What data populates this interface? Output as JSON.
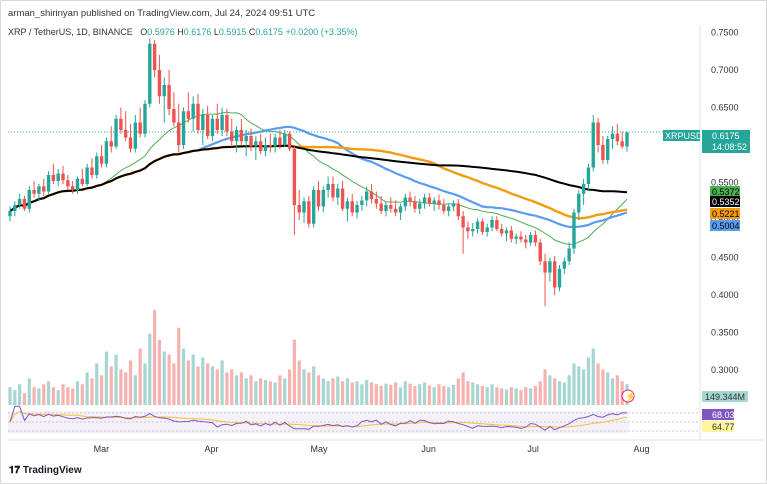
{
  "header": {
    "publisher_line": "arman_shirinyan published on TradingView.com, Jul 24, 2024 09:51 UTC"
  },
  "symbol_bar": {
    "title": "XRP / TetherUS, 1D, BINANCE",
    "o_label": "O",
    "o_value": "0.5976",
    "h_label": "H",
    "h_value": "0.6176",
    "l_label": "L",
    "l_value": "0.5915",
    "c_label": "C",
    "c_value": "0.6175",
    "change": "+0.0200 (+3.35%)"
  },
  "footer": {
    "brand": "TradingView"
  },
  "colors": {
    "up": "#26a69a",
    "down": "#ef5350",
    "ma_short": "#4caf50",
    "ma_mid": "#5b9cf2",
    "ma_long": "#000000",
    "ma_orange": "#f39c12",
    "rsi": "#7e57c2",
    "rsi_ma": "#fbc02d"
  },
  "chart_data": {
    "type": "candlestick",
    "symbol": "XRPUSDT",
    "interval": "1D",
    "exchange": "BINANCE",
    "y_axis": {
      "ticks": [
        "0.7500",
        "0.7000",
        "0.6500",
        "0.6000",
        "0.5500",
        "0.5000",
        "0.4500",
        "0.4000",
        "0.3500",
        "0.3000"
      ],
      "range": [
        0.28,
        0.76
      ]
    },
    "x_axis": {
      "ticks": [
        "Mar",
        "Apr",
        "May",
        "Jun",
        "Jul",
        "Aug"
      ]
    },
    "last_price_label": {
      "symbol": "XRPUSDT",
      "price": "0.6175",
      "countdown": "14:08:52"
    },
    "ma_labels": [
      "0.5372",
      "0.5352",
      "0.5221",
      "0.5004"
    ],
    "volume_label": "149.344M",
    "rsi_labels": [
      "68.03",
      "64.77"
    ],
    "candles": [
      [
        0.505,
        0.518,
        0.498,
        0.512
      ],
      [
        0.512,
        0.525,
        0.505,
        0.52
      ],
      [
        0.52,
        0.535,
        0.515,
        0.528
      ],
      [
        0.528,
        0.532,
        0.512,
        0.515
      ],
      [
        0.515,
        0.545,
        0.51,
        0.54
      ],
      [
        0.54,
        0.552,
        0.53,
        0.535
      ],
      [
        0.535,
        0.548,
        0.525,
        0.545
      ],
      [
        0.545,
        0.555,
        0.532,
        0.538
      ],
      [
        0.538,
        0.565,
        0.535,
        0.56
      ],
      [
        0.56,
        0.575,
        0.548,
        0.552
      ],
      [
        0.552,
        0.568,
        0.545,
        0.562
      ],
      [
        0.562,
        0.572,
        0.548,
        0.553
      ],
      [
        0.553,
        0.56,
        0.54,
        0.545
      ],
      [
        0.545,
        0.552,
        0.535,
        0.54
      ],
      [
        0.54,
        0.558,
        0.535,
        0.555
      ],
      [
        0.555,
        0.568,
        0.545,
        0.548
      ],
      [
        0.548,
        0.575,
        0.545,
        0.57
      ],
      [
        0.57,
        0.582,
        0.555,
        0.56
      ],
      [
        0.56,
        0.59,
        0.555,
        0.585
      ],
      [
        0.585,
        0.6,
        0.57,
        0.575
      ],
      [
        0.575,
        0.61,
        0.57,
        0.605
      ],
      [
        0.605,
        0.625,
        0.59,
        0.598
      ],
      [
        0.598,
        0.64,
        0.595,
        0.635
      ],
      [
        0.635,
        0.65,
        0.615,
        0.62
      ],
      [
        0.62,
        0.645,
        0.605,
        0.61
      ],
      [
        0.61,
        0.628,
        0.59,
        0.595
      ],
      [
        0.595,
        0.64,
        0.59,
        0.63
      ],
      [
        0.63,
        0.65,
        0.61,
        0.615
      ],
      [
        0.615,
        0.66,
        0.61,
        0.655
      ],
      [
        0.655,
        0.742,
        0.65,
        0.735
      ],
      [
        0.735,
        0.74,
        0.69,
        0.7
      ],
      [
        0.7,
        0.72,
        0.655,
        0.665
      ],
      [
        0.665,
        0.69,
        0.63,
        0.68
      ],
      [
        0.68,
        0.7,
        0.64,
        0.648
      ],
      [
        0.648,
        0.67,
        0.625,
        0.63
      ],
      [
        0.63,
        0.655,
        0.59,
        0.6
      ],
      [
        0.6,
        0.65,
        0.595,
        0.645
      ],
      [
        0.645,
        0.67,
        0.63,
        0.635
      ],
      [
        0.635,
        0.665,
        0.618,
        0.655
      ],
      [
        0.655,
        0.668,
        0.615,
        0.62
      ],
      [
        0.62,
        0.648,
        0.6,
        0.64
      ],
      [
        0.64,
        0.652,
        0.608,
        0.612
      ],
      [
        0.612,
        0.64,
        0.605,
        0.635
      ],
      [
        0.635,
        0.655,
        0.615,
        0.62
      ],
      [
        0.62,
        0.65,
        0.612,
        0.64
      ],
      [
        0.64,
        0.648,
        0.612,
        0.618
      ],
      [
        0.618,
        0.635,
        0.598,
        0.605
      ],
      [
        0.605,
        0.625,
        0.59,
        0.62
      ],
      [
        0.62,
        0.635,
        0.6,
        0.605
      ],
      [
        0.605,
        0.62,
        0.585,
        0.612
      ],
      [
        0.612,
        0.622,
        0.592,
        0.598
      ],
      [
        0.598,
        0.612,
        0.58,
        0.605
      ],
      [
        0.605,
        0.615,
        0.588,
        0.592
      ],
      [
        0.592,
        0.61,
        0.585,
        0.6
      ],
      [
        0.6,
        0.615,
        0.59,
        0.598
      ],
      [
        0.598,
        0.615,
        0.59,
        0.61
      ],
      [
        0.61,
        0.62,
        0.595,
        0.6
      ],
      [
        0.6,
        0.62,
        0.598,
        0.615
      ],
      [
        0.615,
        0.618,
        0.592,
        0.595
      ],
      [
        0.595,
        0.6,
        0.48,
        0.52
      ],
      [
        0.52,
        0.54,
        0.5,
        0.51
      ],
      [
        0.51,
        0.53,
        0.496,
        0.525
      ],
      [
        0.525,
        0.532,
        0.49,
        0.495
      ],
      [
        0.495,
        0.545,
        0.49,
        0.54
      ],
      [
        0.54,
        0.552,
        0.512,
        0.518
      ],
      [
        0.518,
        0.545,
        0.51,
        0.54
      ],
      [
        0.54,
        0.558,
        0.53,
        0.548
      ],
      [
        0.548,
        0.558,
        0.525,
        0.53
      ],
      [
        0.53,
        0.548,
        0.52,
        0.542
      ],
      [
        0.542,
        0.552,
        0.512,
        0.515
      ],
      [
        0.515,
        0.53,
        0.498,
        0.525
      ],
      [
        0.525,
        0.535,
        0.505,
        0.51
      ],
      [
        0.51,
        0.525,
        0.502,
        0.52
      ],
      [
        0.52,
        0.532,
        0.512,
        0.526
      ],
      [
        0.526,
        0.545,
        0.518,
        0.538
      ],
      [
        0.538,
        0.548,
        0.522,
        0.528
      ],
      [
        0.528,
        0.538,
        0.515,
        0.522
      ],
      [
        0.522,
        0.532,
        0.508,
        0.512
      ],
      [
        0.512,
        0.525,
        0.505,
        0.52
      ],
      [
        0.52,
        0.53,
        0.51,
        0.515
      ],
      [
        0.515,
        0.526,
        0.505,
        0.51
      ],
      [
        0.51,
        0.522,
        0.5,
        0.518
      ],
      [
        0.518,
        0.535,
        0.512,
        0.53
      ],
      [
        0.53,
        0.538,
        0.518,
        0.525
      ],
      [
        0.525,
        0.532,
        0.51,
        0.515
      ],
      [
        0.515,
        0.528,
        0.508,
        0.522
      ],
      [
        0.522,
        0.535,
        0.515,
        0.53
      ],
      [
        0.53,
        0.536,
        0.518,
        0.522
      ],
      [
        0.522,
        0.53,
        0.512,
        0.526
      ],
      [
        0.526,
        0.534,
        0.514,
        0.52
      ],
      [
        0.52,
        0.528,
        0.508,
        0.512
      ],
      [
        0.512,
        0.522,
        0.505,
        0.518
      ],
      [
        0.518,
        0.526,
        0.512,
        0.522
      ],
      [
        0.522,
        0.528,
        0.5,
        0.505
      ],
      [
        0.505,
        0.512,
        0.455,
        0.49
      ],
      [
        0.49,
        0.498,
        0.475,
        0.485
      ],
      [
        0.485,
        0.496,
        0.478,
        0.488
      ],
      [
        0.488,
        0.502,
        0.482,
        0.498
      ],
      [
        0.498,
        0.502,
        0.48,
        0.484
      ],
      [
        0.484,
        0.495,
        0.478,
        0.49
      ],
      [
        0.49,
        0.505,
        0.485,
        0.5
      ],
      [
        0.5,
        0.505,
        0.485,
        0.488
      ],
      [
        0.488,
        0.495,
        0.478,
        0.482
      ],
      [
        0.482,
        0.49,
        0.472,
        0.486
      ],
      [
        0.486,
        0.492,
        0.47,
        0.475
      ],
      [
        0.475,
        0.482,
        0.468,
        0.478
      ],
      [
        0.478,
        0.485,
        0.47,
        0.474
      ],
      [
        0.474,
        0.48,
        0.462,
        0.47
      ],
      [
        0.47,
        0.484,
        0.466,
        0.48
      ],
      [
        0.48,
        0.486,
        0.465,
        0.47
      ],
      [
        0.47,
        0.475,
        0.44,
        0.445
      ],
      [
        0.445,
        0.455,
        0.385,
        0.43
      ],
      [
        0.43,
        0.45,
        0.418,
        0.445
      ],
      [
        0.445,
        0.452,
        0.4,
        0.41
      ],
      [
        0.41,
        0.44,
        0.405,
        0.435
      ],
      [
        0.435,
        0.45,
        0.428,
        0.445
      ],
      [
        0.445,
        0.47,
        0.44,
        0.462
      ],
      [
        0.462,
        0.515,
        0.455,
        0.51
      ],
      [
        0.51,
        0.54,
        0.5,
        0.535
      ],
      [
        0.535,
        0.555,
        0.52,
        0.548
      ],
      [
        0.548,
        0.575,
        0.54,
        0.57
      ],
      [
        0.57,
        0.64,
        0.565,
        0.63
      ],
      [
        0.63,
        0.636,
        0.59,
        0.6
      ],
      [
        0.6,
        0.612,
        0.575,
        0.58
      ],
      [
        0.58,
        0.612,
        0.575,
        0.608
      ],
      [
        0.608,
        0.625,
        0.595,
        0.615
      ],
      [
        0.615,
        0.628,
        0.6,
        0.605
      ],
      [
        0.605,
        0.618,
        0.595,
        0.598
      ],
      [
        0.598,
        0.617,
        0.591,
        0.617
      ]
    ],
    "volume": [
      30,
      25,
      35,
      20,
      45,
      30,
      28,
      35,
      40,
      30,
      25,
      35,
      30,
      28,
      40,
      35,
      55,
      45,
      70,
      50,
      90,
      65,
      85,
      60,
      55,
      75,
      50,
      95,
      70,
      120,
      160,
      110,
      90,
      85,
      70,
      130,
      95,
      75,
      85,
      65,
      80,
      70,
      65,
      60,
      75,
      55,
      60,
      50,
      55,
      45,
      50,
      40,
      45,
      42,
      40,
      38,
      50,
      45,
      60,
      110,
      75,
      60,
      55,
      65,
      50,
      45,
      40,
      45,
      48,
      40,
      45,
      38,
      40,
      35,
      42,
      38,
      35,
      32,
      36,
      34,
      38,
      30,
      40,
      36,
      32,
      35,
      38,
      33,
      30,
      35,
      32,
      30,
      34,
      45,
      55,
      40,
      38,
      35,
      32,
      30,
      35,
      30,
      28,
      26,
      30,
      28,
      25,
      30,
      28,
      32,
      40,
      60,
      50,
      45,
      40,
      38,
      50,
      70,
      65,
      60,
      80,
      95,
      70,
      60,
      55,
      45,
      50,
      40,
      35
    ],
    "ma_labels_order": [
      "green",
      "black",
      "orange",
      "blue"
    ]
  }
}
